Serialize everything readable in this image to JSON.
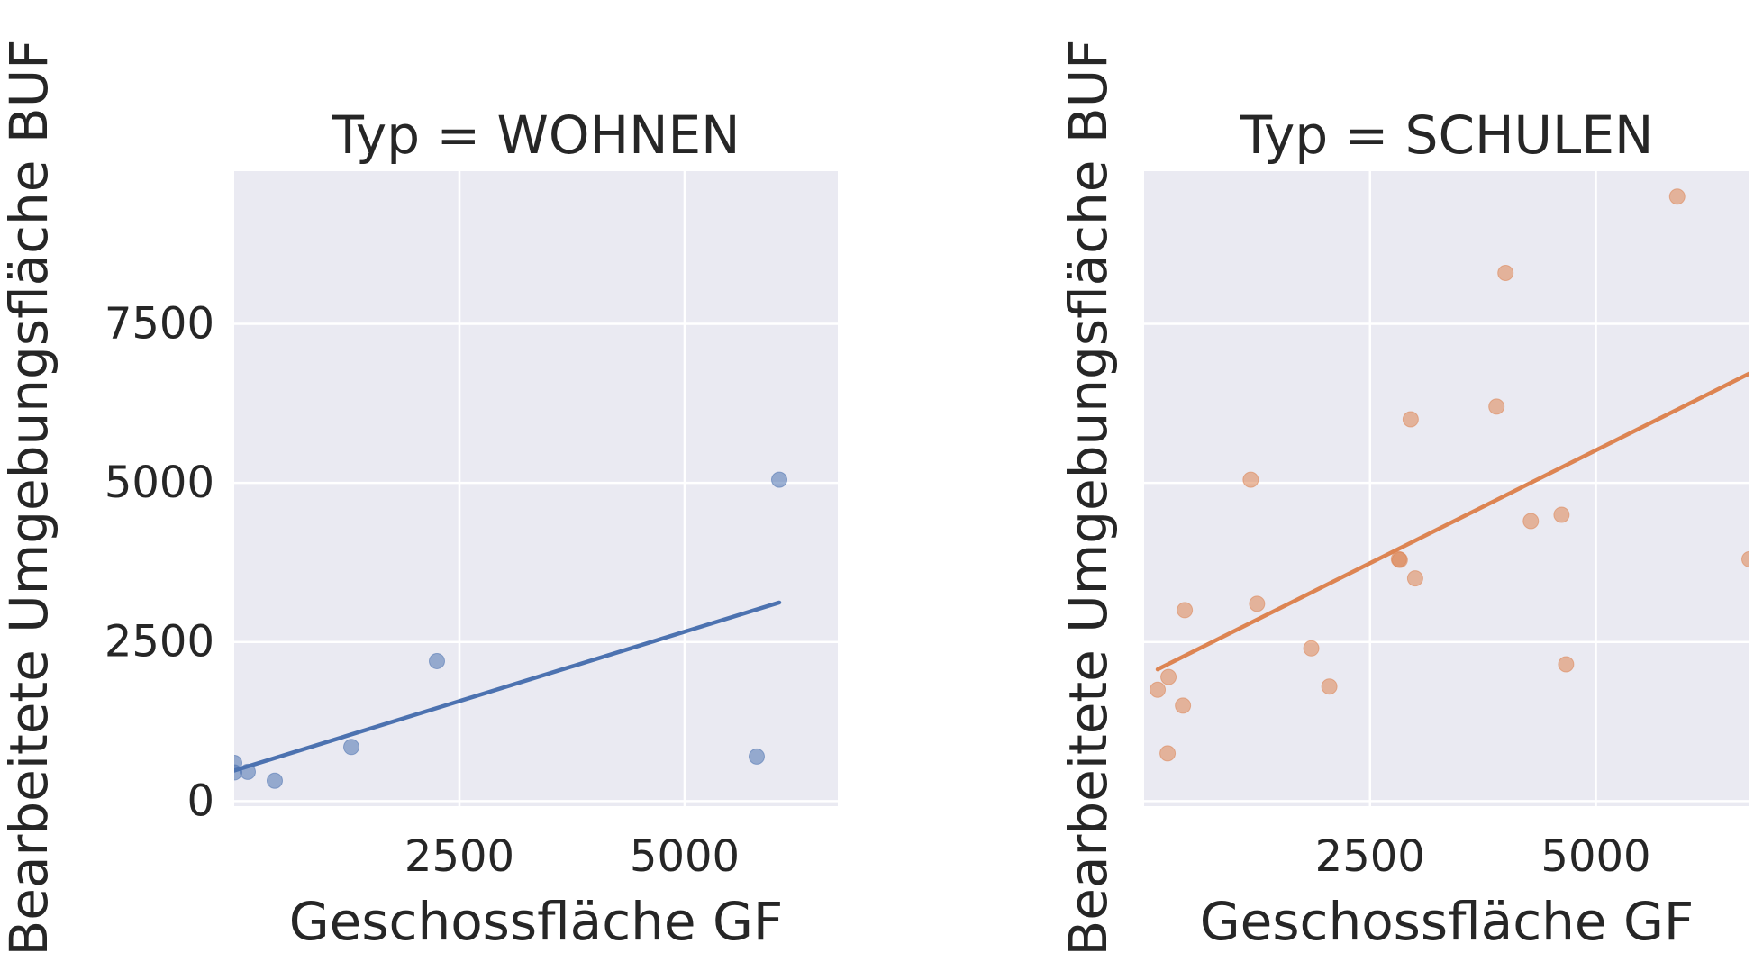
{
  "colors": {
    "background": "#eaeaf2",
    "grid": "#ffffff",
    "text": "#262626",
    "wohnen": "#4c72b0",
    "schulen": "#dd8452"
  },
  "chart_data": [
    {
      "type": "scatter",
      "title": "Typ = WOHNEN",
      "xlabel": "Geschossfläche GF",
      "ylabel": "Bearbeitete Umgebungsfläche BUF",
      "xlim": [
        0,
        6700
      ],
      "ylim": [
        -80,
        9900
      ],
      "xticks": [
        2500,
        5000
      ],
      "yticks": [
        0,
        2500,
        5000,
        7500
      ],
      "xtick_labels": [
        "2500",
        "5000"
      ],
      "ytick_labels": [
        "0",
        "2500",
        "5000",
        "7500"
      ],
      "grid": true,
      "series": [
        {
          "color": "#4c72b0",
          "points": [
            {
              "x": 0,
              "y": 600
            },
            {
              "x": 0,
              "y": 450
            },
            {
              "x": 150,
              "y": 460
            },
            {
              "x": 450,
              "y": 320
            },
            {
              "x": 1300,
              "y": 850
            },
            {
              "x": 2250,
              "y": 2200
            },
            {
              "x": 5800,
              "y": 700
            },
            {
              "x": 6050,
              "y": 5050
            }
          ],
          "regression": {
            "x": [
              0,
              6050
            ],
            "y": [
              480,
              3120
            ]
          }
        }
      ]
    },
    {
      "type": "scatter",
      "title": "Typ = SCHULEN",
      "xlabel": "Geschossfläche GF",
      "ylabel": "Bearbeitete Umgebungsfläche BUF",
      "xlim": [
        0,
        6700
      ],
      "ylim": [
        -80,
        9900
      ],
      "xticks": [
        2500,
        5000
      ],
      "yticks": [
        0,
        2500,
        5000,
        7500
      ],
      "xtick_labels": [
        "2500",
        "5000"
      ],
      "ytick_labels": [],
      "grid": true,
      "series": [
        {
          "color": "#dd8452",
          "points": [
            {
              "x": 150,
              "y": 1750
            },
            {
              "x": 270,
              "y": 1950
            },
            {
              "x": 260,
              "y": 750
            },
            {
              "x": 430,
              "y": 1500
            },
            {
              "x": 450,
              "y": 3000
            },
            {
              "x": 1180,
              "y": 5050
            },
            {
              "x": 1250,
              "y": 3100
            },
            {
              "x": 1850,
              "y": 2400
            },
            {
              "x": 2050,
              "y": 1800
            },
            {
              "x": 2820,
              "y": 3800
            },
            {
              "x": 2830,
              "y": 3790
            },
            {
              "x": 2950,
              "y": 6000
            },
            {
              "x": 3000,
              "y": 3500
            },
            {
              "x": 3900,
              "y": 6200
            },
            {
              "x": 4000,
              "y": 8300
            },
            {
              "x": 4280,
              "y": 4400
            },
            {
              "x": 4620,
              "y": 4500
            },
            {
              "x": 4670,
              "y": 2150
            },
            {
              "x": 5900,
              "y": 9500
            },
            {
              "x": 6700,
              "y": 3800
            }
          ],
          "regression": {
            "x": [
              150,
              6700
            ],
            "y": [
              2070,
              6720
            ]
          }
        }
      ]
    }
  ]
}
